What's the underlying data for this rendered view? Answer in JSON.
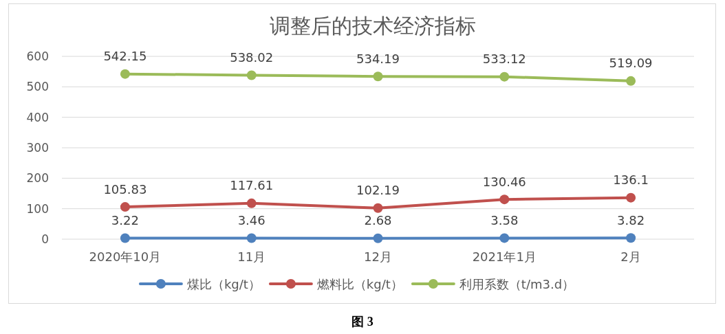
{
  "chart_data": {
    "type": "line",
    "title": "调整后的技术经济指标",
    "categories": [
      "2020年10月",
      "11月",
      "12月",
      "2021年1月",
      "2月"
    ],
    "series": [
      {
        "name": "煤比（kg/t）",
        "color": "#4f81bd",
        "values": [
          3.22,
          3.46,
          2.68,
          3.58,
          3.82
        ]
      },
      {
        "name": "燃料比（kg/t）",
        "color": "#c0504d",
        "values": [
          105.83,
          117.61,
          102.19,
          130.46,
          136.1
        ]
      },
      {
        "name": "利用系数（t/m3.d）",
        "color": "#9bbb59",
        "values": [
          542.15,
          538.02,
          534.19,
          533.12,
          519.09
        ]
      }
    ],
    "ylim": [
      0,
      600
    ],
    "yticks": [
      0,
      100,
      200,
      300,
      400,
      500,
      600
    ],
    "grid": "y",
    "legend": "bottom",
    "marker": "circle",
    "line_style": "solid",
    "data_labels": true,
    "annotations": [
      "图 3"
    ]
  }
}
